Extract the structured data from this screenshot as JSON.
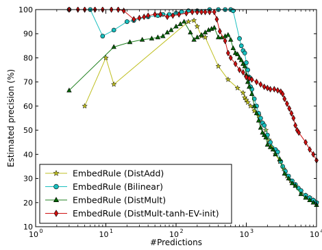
{
  "chart_data": {
    "type": "line",
    "xlabel": "#Predictions",
    "ylabel": "Estimated precision (%)",
    "xscale": "log",
    "xlim": [
      1,
      10000
    ],
    "ylim": [
      10,
      100
    ],
    "x_ticks": [
      1,
      10,
      100,
      1000,
      10000
    ],
    "x_tick_labels": [
      "10",
      "10",
      "10",
      "10",
      "10"
    ],
    "x_tick_exponents": [
      "0",
      "1",
      "2",
      "3",
      "4"
    ],
    "y_ticks": [
      10,
      20,
      30,
      40,
      50,
      60,
      70,
      80,
      90,
      100
    ],
    "y_tick_labels": [
      "10",
      "20",
      "30",
      "40",
      "50",
      "60",
      "70",
      "80",
      "90",
      "100"
    ],
    "grid": false,
    "legend_position": "lower-left",
    "series": [
      {
        "name": "EmbedRule (DistAdd)",
        "color": "#bfbf20",
        "marker": "star",
        "marker_fill": "#bfbf20",
        "points": [
          [
            5,
            60
          ],
          [
            10,
            80
          ],
          [
            13,
            69
          ],
          [
            150,
            95
          ],
          [
            180,
            95.5
          ],
          [
            200,
            93
          ],
          [
            230,
            89
          ],
          [
            260,
            88.5
          ],
          [
            400,
            76.5
          ],
          [
            550,
            71
          ],
          [
            750,
            67.5
          ],
          [
            900,
            65.5
          ],
          [
            950,
            63.5
          ],
          [
            1000,
            62.5
          ],
          [
            1050,
            61.5
          ],
          [
            1150,
            60
          ],
          [
            1300,
            58
          ],
          [
            1500,
            56
          ],
          [
            1700,
            53
          ],
          [
            1900,
            50
          ],
          [
            2100,
            46
          ],
          [
            2300,
            43
          ],
          [
            2600,
            40
          ],
          [
            3000,
            37
          ],
          [
            3400,
            34
          ],
          [
            3800,
            31
          ],
          [
            4300,
            29
          ],
          [
            5000,
            27
          ],
          [
            6000,
            24.5
          ],
          [
            7000,
            23
          ],
          [
            8000,
            22
          ],
          [
            9000,
            21
          ],
          [
            10000,
            20
          ]
        ]
      },
      {
        "name": "EmbedRule (Bilinear)",
        "color": "#19bfbf",
        "marker": "circle",
        "marker_fill": "#19bfbf",
        "points": [
          [
            3,
            100
          ],
          [
            6,
            100
          ],
          [
            9,
            89
          ],
          [
            13,
            91.5
          ],
          [
            20,
            95
          ],
          [
            25,
            95.5
          ],
          [
            40,
            97
          ],
          [
            55,
            97.5
          ],
          [
            65,
            98
          ],
          [
            80,
            98
          ],
          [
            100,
            98.5
          ],
          [
            120,
            99
          ],
          [
            150,
            99.5
          ],
          [
            200,
            99.5
          ],
          [
            300,
            100
          ],
          [
            400,
            100
          ],
          [
            500,
            100
          ],
          [
            600,
            100
          ],
          [
            650,
            99.5
          ],
          [
            800,
            88
          ],
          [
            850,
            85
          ],
          [
            900,
            83
          ],
          [
            950,
            82
          ],
          [
            1000,
            78
          ],
          [
            1050,
            75
          ],
          [
            1100,
            72
          ],
          [
            1150,
            68
          ],
          [
            1200,
            67
          ],
          [
            1300,
            63
          ],
          [
            1400,
            60
          ],
          [
            1500,
            57
          ],
          [
            1600,
            55
          ],
          [
            1700,
            53
          ],
          [
            1800,
            52
          ],
          [
            2000,
            48
          ],
          [
            2200,
            45
          ],
          [
            2600,
            42
          ],
          [
            2800,
            41
          ],
          [
            3100,
            37
          ],
          [
            3300,
            35
          ],
          [
            3600,
            33
          ],
          [
            4000,
            31
          ],
          [
            4500,
            29
          ],
          [
            5000,
            27.5
          ],
          [
            5500,
            26
          ],
          [
            6000,
            25
          ],
          [
            7000,
            23
          ],
          [
            8000,
            22
          ],
          [
            9000,
            21
          ],
          [
            10000,
            20
          ]
        ]
      },
      {
        "name": "EmbedRule (DistMult)",
        "color": "#208020",
        "marker": "triangle",
        "marker_fill": "#006400",
        "points": [
          [
            3,
            66.5
          ],
          [
            13,
            84.5
          ],
          [
            22,
            86.5
          ],
          [
            33,
            87.5
          ],
          [
            45,
            88
          ],
          [
            55,
            88.5
          ],
          [
            65,
            89
          ],
          [
            75,
            90.5
          ],
          [
            85,
            91.5
          ],
          [
            100,
            93
          ],
          [
            115,
            94
          ],
          [
            130,
            95
          ],
          [
            160,
            90.5
          ],
          [
            180,
            87.5
          ],
          [
            200,
            88.5
          ],
          [
            230,
            89.5
          ],
          [
            260,
            90.5
          ],
          [
            290,
            91.5
          ],
          [
            320,
            92
          ],
          [
            350,
            92.5
          ],
          [
            400,
            88.5
          ],
          [
            450,
            88.5
          ],
          [
            500,
            89
          ],
          [
            550,
            89.5
          ],
          [
            600,
            87.5
          ],
          [
            650,
            84
          ],
          [
            700,
            82
          ],
          [
            750,
            81.5
          ],
          [
            800,
            80
          ],
          [
            850,
            79
          ],
          [
            900,
            77.5
          ],
          [
            950,
            76.5
          ],
          [
            1000,
            73
          ],
          [
            1050,
            70
          ],
          [
            1100,
            68
          ],
          [
            1200,
            65
          ],
          [
            1300,
            60
          ],
          [
            1400,
            57
          ],
          [
            1500,
            54
          ],
          [
            1600,
            51
          ],
          [
            1700,
            49
          ],
          [
            1800,
            48
          ],
          [
            1900,
            47
          ],
          [
            2000,
            44
          ],
          [
            2200,
            43
          ],
          [
            2400,
            42
          ],
          [
            2600,
            40
          ],
          [
            3000,
            38
          ],
          [
            3500,
            32
          ],
          [
            4000,
            30
          ],
          [
            4500,
            28
          ],
          [
            5000,
            27
          ],
          [
            6000,
            23.5
          ],
          [
            7000,
            22
          ],
          [
            8000,
            21
          ],
          [
            9000,
            20
          ],
          [
            10000,
            19
          ]
        ]
      },
      {
        "name": "EmbedRule (DistMult-tanh-EV-init)",
        "color": "#d01010",
        "marker": "diamond",
        "marker_fill": "#d01010",
        "points": [
          [
            3,
            100
          ],
          [
            4,
            100
          ],
          [
            5,
            100
          ],
          [
            7,
            100
          ],
          [
            9,
            100
          ],
          [
            12,
            100
          ],
          [
            15,
            100
          ],
          [
            18,
            99.5
          ],
          [
            25,
            96
          ],
          [
            30,
            96.5
          ],
          [
            35,
            97
          ],
          [
            40,
            97.5
          ],
          [
            50,
            98
          ],
          [
            60,
            98
          ],
          [
            75,
            97
          ],
          [
            90,
            97.5
          ],
          [
            110,
            98
          ],
          [
            140,
            98.5
          ],
          [
            170,
            99
          ],
          [
            200,
            99
          ],
          [
            230,
            99
          ],
          [
            260,
            99
          ],
          [
            300,
            99
          ],
          [
            350,
            99
          ],
          [
            380,
            96
          ],
          [
            420,
            91
          ],
          [
            500,
            87
          ],
          [
            550,
            82
          ],
          [
            600,
            80
          ],
          [
            700,
            77.5
          ],
          [
            800,
            75
          ],
          [
            900,
            74
          ],
          [
            1000,
            72
          ],
          [
            1100,
            71.5
          ],
          [
            1200,
            71
          ],
          [
            1400,
            70
          ],
          [
            1600,
            69
          ],
          [
            1800,
            68
          ],
          [
            2000,
            67.5
          ],
          [
            2200,
            67
          ],
          [
            2500,
            67
          ],
          [
            2800,
            66.5
          ],
          [
            3100,
            66
          ],
          [
            3300,
            65
          ],
          [
            3500,
            63
          ],
          [
            3800,
            61
          ],
          [
            4100,
            59
          ],
          [
            4400,
            57
          ],
          [
            4700,
            55
          ],
          [
            5000,
            52
          ],
          [
            5300,
            50
          ],
          [
            5600,
            49
          ],
          [
            7000,
            45
          ],
          [
            8000,
            42
          ],
          [
            9000,
            40
          ],
          [
            10000,
            37.5
          ]
        ]
      }
    ]
  }
}
